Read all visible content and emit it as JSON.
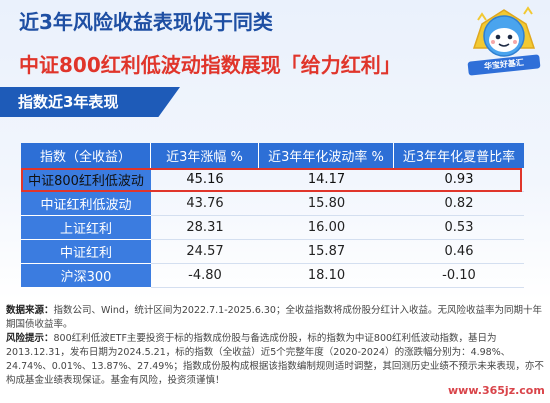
{
  "header": {
    "title_line1": "近3年风险收益表现优于同类",
    "title_line2": "中证800红利低波动指数展现「给力红利」"
  },
  "mascot": {
    "icon": "mascot-icon",
    "label": "华宝好基汇"
  },
  "section": {
    "label": "指数近3年表现"
  },
  "table": {
    "headers": [
      "指数（全收益）",
      "近3年涨幅 %",
      "近3年年化波动率 %",
      "近3年年化夏普比率"
    ],
    "rows": [
      {
        "name": "中证800红利低波动",
        "return": "45.16",
        "volatility": "14.17",
        "sharpe": "0.93"
      },
      {
        "name": "中证红利低波动",
        "return": "43.76",
        "volatility": "15.80",
        "sharpe": "0.82"
      },
      {
        "name": "上证红利",
        "return": "28.31",
        "volatility": "16.00",
        "sharpe": "0.53"
      },
      {
        "name": "中证红利",
        "return": "24.57",
        "volatility": "15.87",
        "sharpe": "0.46"
      },
      {
        "name": "沪深300",
        "return": "-4.80",
        "volatility": "18.10",
        "sharpe": "-0.10"
      }
    ],
    "highlight_color": "#e0352b",
    "header_color": "#2d6fd6"
  },
  "notes": {
    "source_label": "数据来源：",
    "source_text": "指数公司、Wind，统计区间为2022.7.1-2025.6.30；全收益指数将成份股分红计入收益。无风险收益率为同期十年期国债收益率。",
    "risk_label": "风险提示：",
    "risk_text": "800红利低波ETF主要投资于标的指数成份股与备选成份股，标的指数为中证800红利低波动指数，基日为2013.12.31，发布日期为2024.5.21，标的指数（全收益）近5个完整年度（2020-2024）的涨跌幅分别为：4.98%、24.74%、0.01%、13.87%、27.49%；指数成份股构成根据该指数编制规则适时调整，其回测历史业绩不预示未来表现，亦不构成基金业绩表现保证。基金有风险，投资须谨慎！"
  },
  "watermark": {
    "text": "www.365jz.com"
  }
}
